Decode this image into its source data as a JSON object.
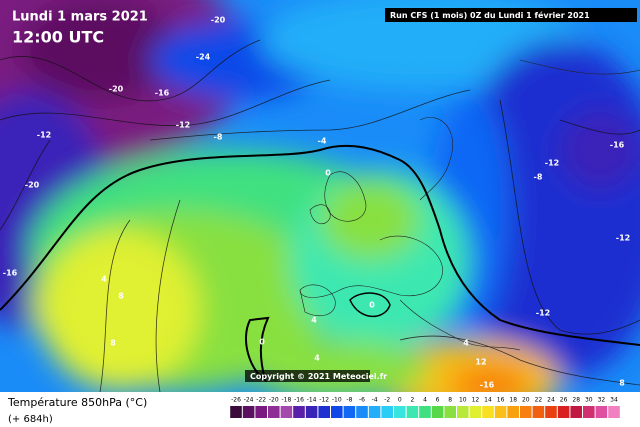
{
  "header": {
    "date": "Lundi 1 mars 2021",
    "time": "12:00 UTC",
    "run": "Run CFS (1 mois) 0Z du Lundi 1 février 2021"
  },
  "copyright": "Copyright © 2021 Meteociel.fr",
  "legend": {
    "title": "Température 850hPa (°C)",
    "lead": "(+ 684h)",
    "ticks": [
      -26,
      -24,
      -22,
      -20,
      -18,
      -16,
      -14,
      -12,
      -10,
      -8,
      -6,
      -4,
      -2,
      0,
      2,
      4,
      6,
      8,
      10,
      12,
      14,
      16,
      18,
      20,
      22,
      24,
      26,
      28,
      30,
      32,
      34
    ],
    "colors": [
      "#3a0a3a",
      "#5c1060",
      "#7a1a80",
      "#8f2f96",
      "#a448ab",
      "#5a1fa8",
      "#3a24b8",
      "#1f2fd0",
      "#1048e8",
      "#1068f5",
      "#1a8cf8",
      "#22aef8",
      "#2ccdf5",
      "#38e4e0",
      "#3ce8b0",
      "#40e080",
      "#58d848",
      "#88e040",
      "#b8e838",
      "#e0f030",
      "#f8e020",
      "#f8c018",
      "#f8a010",
      "#f88010",
      "#f06010",
      "#e84010",
      "#d82020",
      "#c01840",
      "#d03070",
      "#e050a0",
      "#f080c0"
    ]
  },
  "contour_labels": [
    -20,
    -24,
    -20,
    -16,
    -12,
    -8,
    -12,
    -20,
    -16,
    -4,
    0,
    4,
    8,
    8,
    0,
    4,
    0,
    4,
    4,
    12,
    -16,
    -8,
    -12,
    -16,
    -12,
    -12,
    8
  ]
}
